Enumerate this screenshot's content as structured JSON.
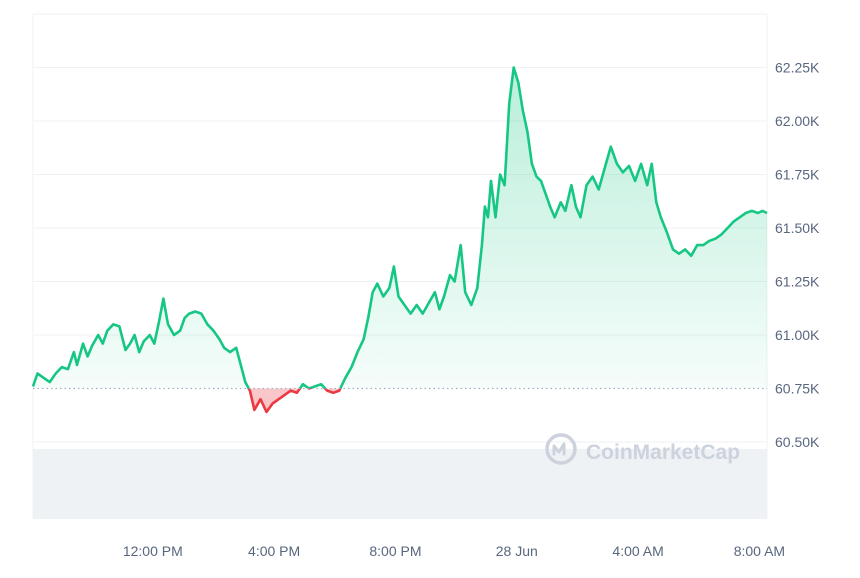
{
  "chart_data": {
    "type": "area",
    "watermark": "CoinMarketCap",
    "baseline": 60.75,
    "ylim": [
      60.45,
      62.35
    ],
    "y_tick_labels": [
      {
        "value": 62.25,
        "label": "62.25K"
      },
      {
        "value": 62.0,
        "label": "62.00K"
      },
      {
        "value": 61.75,
        "label": "61.75K"
      },
      {
        "value": 61.5,
        "label": "61.50K"
      },
      {
        "value": 61.25,
        "label": "61.25K"
      },
      {
        "value": 61.0,
        "label": "61.00K"
      },
      {
        "value": 60.75,
        "label": "60.75K"
      },
      {
        "value": 60.5,
        "label": "60.50K"
      }
    ],
    "x_tick_labels": [
      {
        "hour": 12,
        "label": "12:00 PM"
      },
      {
        "hour": 16,
        "label": "4:00 PM"
      },
      {
        "hour": 20,
        "label": "8:00 PM"
      },
      {
        "hour": 24,
        "label": "28 Jun"
      },
      {
        "hour": 28,
        "label": "4:00 AM"
      },
      {
        "hour": 32,
        "label": "8:00 AM"
      }
    ],
    "xlim": [
      8.05,
      32.25
    ],
    "series": [
      {
        "points": [
          [
            8.05,
            60.76
          ],
          [
            8.2,
            60.82
          ],
          [
            8.4,
            60.8
          ],
          [
            8.6,
            60.78
          ],
          [
            8.8,
            60.82
          ],
          [
            9.0,
            60.85
          ],
          [
            9.2,
            60.84
          ],
          [
            9.4,
            60.92
          ],
          [
            9.5,
            60.86
          ],
          [
            9.7,
            60.96
          ],
          [
            9.85,
            60.9
          ],
          [
            10.0,
            60.95
          ],
          [
            10.2,
            61.0
          ],
          [
            10.35,
            60.96
          ],
          [
            10.5,
            61.02
          ],
          [
            10.7,
            61.05
          ],
          [
            10.9,
            61.04
          ],
          [
            11.1,
            60.93
          ],
          [
            11.25,
            60.96
          ],
          [
            11.4,
            61.0
          ],
          [
            11.55,
            60.92
          ],
          [
            11.7,
            60.97
          ],
          [
            11.9,
            61.0
          ],
          [
            12.05,
            60.96
          ],
          [
            12.2,
            61.06
          ],
          [
            12.35,
            61.17
          ],
          [
            12.5,
            61.05
          ],
          [
            12.7,
            61.0
          ],
          [
            12.9,
            61.02
          ],
          [
            13.05,
            61.08
          ],
          [
            13.2,
            61.1
          ],
          [
            13.4,
            61.11
          ],
          [
            13.6,
            61.1
          ],
          [
            13.8,
            61.05
          ],
          [
            14.0,
            61.02
          ],
          [
            14.2,
            60.98
          ],
          [
            14.35,
            60.94
          ],
          [
            14.55,
            60.92
          ],
          [
            14.75,
            60.94
          ],
          [
            14.9,
            60.86
          ],
          [
            15.05,
            60.78
          ],
          [
            15.2,
            60.74
          ],
          [
            15.35,
            60.65
          ],
          [
            15.55,
            60.7
          ],
          [
            15.75,
            60.64
          ],
          [
            15.95,
            60.68
          ],
          [
            16.15,
            60.7
          ],
          [
            16.35,
            60.72
          ],
          [
            16.55,
            60.74
          ],
          [
            16.75,
            60.73
          ],
          [
            16.95,
            60.77
          ],
          [
            17.15,
            60.75
          ],
          [
            17.35,
            60.76
          ],
          [
            17.55,
            60.77
          ],
          [
            17.75,
            60.74
          ],
          [
            17.95,
            60.73
          ],
          [
            18.15,
            60.74
          ],
          [
            18.35,
            60.8
          ],
          [
            18.55,
            60.85
          ],
          [
            18.75,
            60.92
          ],
          [
            18.95,
            60.98
          ],
          [
            19.1,
            61.08
          ],
          [
            19.25,
            61.2
          ],
          [
            19.4,
            61.24
          ],
          [
            19.6,
            61.18
          ],
          [
            19.8,
            61.22
          ],
          [
            19.95,
            61.32
          ],
          [
            20.1,
            61.18
          ],
          [
            20.3,
            61.14
          ],
          [
            20.5,
            61.1
          ],
          [
            20.7,
            61.14
          ],
          [
            20.9,
            61.1
          ],
          [
            21.1,
            61.15
          ],
          [
            21.3,
            61.2
          ],
          [
            21.45,
            61.12
          ],
          [
            21.6,
            61.18
          ],
          [
            21.8,
            61.28
          ],
          [
            21.95,
            61.25
          ],
          [
            22.15,
            61.42
          ],
          [
            22.3,
            61.2
          ],
          [
            22.5,
            61.14
          ],
          [
            22.7,
            61.22
          ],
          [
            22.85,
            61.42
          ],
          [
            22.95,
            61.6
          ],
          [
            23.05,
            61.55
          ],
          [
            23.15,
            61.72
          ],
          [
            23.3,
            61.55
          ],
          [
            23.45,
            61.75
          ],
          [
            23.6,
            61.7
          ],
          [
            23.75,
            62.08
          ],
          [
            23.9,
            62.25
          ],
          [
            24.05,
            62.18
          ],
          [
            24.2,
            62.05
          ],
          [
            24.35,
            61.95
          ],
          [
            24.5,
            61.8
          ],
          [
            24.65,
            61.74
          ],
          [
            24.8,
            61.72
          ],
          [
            24.95,
            61.66
          ],
          [
            25.1,
            61.6
          ],
          [
            25.25,
            61.55
          ],
          [
            25.45,
            61.62
          ],
          [
            25.6,
            61.58
          ],
          [
            25.8,
            61.7
          ],
          [
            25.95,
            61.6
          ],
          [
            26.1,
            61.55
          ],
          [
            26.3,
            61.7
          ],
          [
            26.5,
            61.74
          ],
          [
            26.7,
            61.68
          ],
          [
            26.9,
            61.78
          ],
          [
            27.1,
            61.88
          ],
          [
            27.3,
            61.8
          ],
          [
            27.5,
            61.76
          ],
          [
            27.7,
            61.79
          ],
          [
            27.9,
            61.72
          ],
          [
            28.1,
            61.8
          ],
          [
            28.3,
            61.7
          ],
          [
            28.45,
            61.8
          ],
          [
            28.6,
            61.62
          ],
          [
            28.75,
            61.55
          ],
          [
            28.95,
            61.48
          ],
          [
            29.15,
            61.4
          ],
          [
            29.35,
            61.38
          ],
          [
            29.55,
            61.4
          ],
          [
            29.75,
            61.37
          ],
          [
            29.95,
            61.42
          ],
          [
            30.15,
            61.42
          ],
          [
            30.35,
            61.44
          ],
          [
            30.55,
            61.45
          ],
          [
            30.75,
            61.47
          ],
          [
            30.95,
            61.5
          ],
          [
            31.15,
            61.53
          ],
          [
            31.35,
            61.55
          ],
          [
            31.55,
            61.57
          ],
          [
            31.75,
            61.58
          ],
          [
            31.95,
            61.57
          ],
          [
            32.1,
            61.58
          ],
          [
            32.25,
            61.57
          ]
        ]
      }
    ],
    "colors": {
      "up": "#16c784",
      "down": "#ea3943",
      "grid": "#eff2f5",
      "baseline": "#a6b0c3",
      "volume": "#eff2f5",
      "axis_text": "#58667e",
      "watermark": "#cdd3dd"
    },
    "grid": true,
    "legend": "none"
  }
}
